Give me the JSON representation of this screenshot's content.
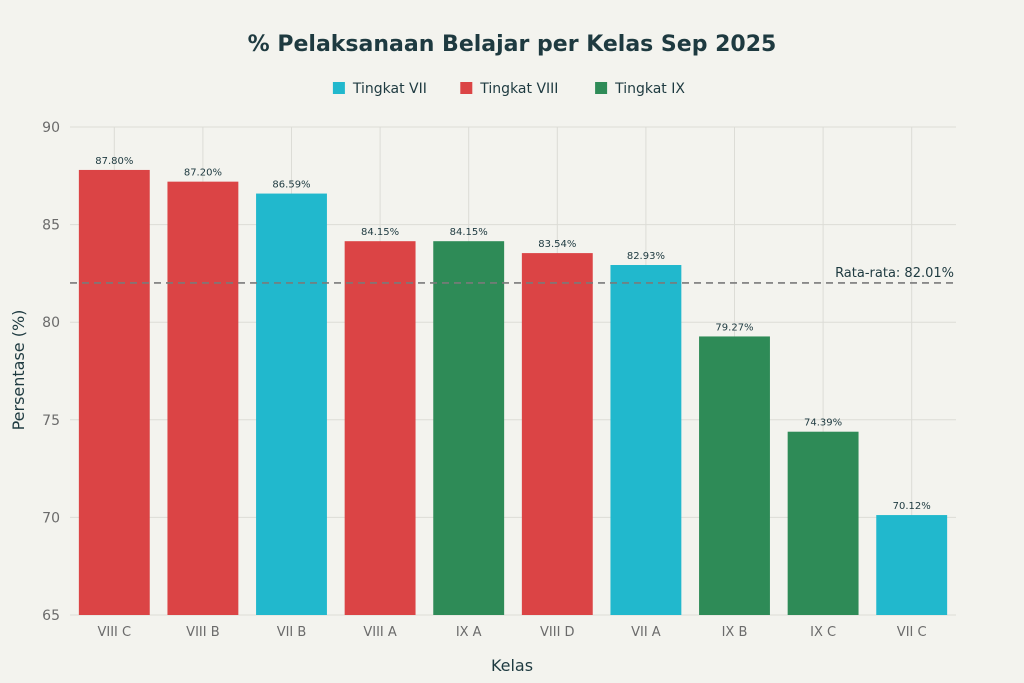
{
  "chart_data": {
    "type": "bar",
    "title": "% Pelaksanaan Belajar per Kelas Sep 2025",
    "xlabel": "Kelas",
    "ylabel": "Persentase (%)",
    "ylim": [
      65,
      90
    ],
    "yticks": [
      65,
      70,
      75,
      80,
      85,
      90
    ],
    "grid": true,
    "legend_position": "top-center",
    "categories": [
      "VIII C",
      "VIII B",
      "VII B",
      "VIII A",
      "IX A",
      "VIII D",
      "VII A",
      "IX B",
      "IX C",
      "VII C"
    ],
    "values": [
      87.8,
      87.2,
      86.59,
      84.15,
      84.15,
      83.54,
      82.93,
      79.27,
      74.39,
      70.12
    ],
    "data_labels": [
      "87.80%",
      "87.20%",
      "86.59%",
      "84.15%",
      "84.15%",
      "83.54%",
      "82.93%",
      "79.27%",
      "74.39%",
      "70.12%"
    ],
    "groups": [
      "Tingkat VIII",
      "Tingkat VIII",
      "Tingkat VII",
      "Tingkat VIII",
      "Tingkat IX",
      "Tingkat VIII",
      "Tingkat VII",
      "Tingkat IX",
      "Tingkat IX",
      "Tingkat VII"
    ],
    "legend": [
      {
        "name": "Tingkat VII",
        "color": "#21b8cd"
      },
      {
        "name": "Tingkat VIII",
        "color": "#db4445"
      },
      {
        "name": "Tingkat IX",
        "color": "#2e8b57"
      }
    ],
    "reference_line": {
      "value": 82.01,
      "label": "Rata-rata: 82.01%",
      "style": "dashed",
      "color": "#7a7a7a"
    }
  }
}
